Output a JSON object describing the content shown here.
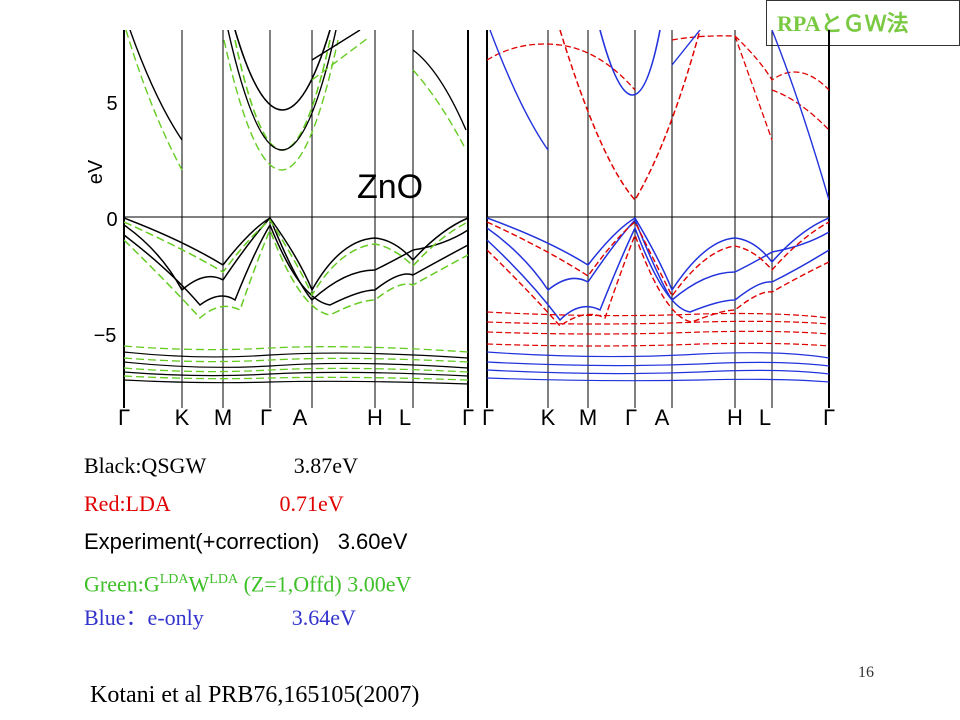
{
  "corner_tag": "RPAとＧＷ法",
  "figure": {
    "material_label": "ZnO",
    "y_axis_label": "eV",
    "y_ticks": [
      "5",
      "0",
      "−5"
    ],
    "k_labels": [
      "Γ",
      "K",
      "M",
      "Γ",
      "A",
      "H",
      "L",
      "Γ"
    ]
  },
  "legend": {
    "line1": "Black:QSGW                3.87eV",
    "line2": "Red:LDA                    0.71eV",
    "line3": "Experiment(+correction)   3.60eV",
    "line4_pre": "Green:G",
    "line4_sup1": "LDA",
    "line4_mid": "W",
    "line4_sup2": "LDA",
    "line4_post": " (Z=1,Offd) 3.00eV",
    "line5": "Blue：e-only                3.64eV"
  },
  "page_number": "16",
  "citation": "Kotani et al PRB76,165105(2007)",
  "colors": {
    "qsgw": "#000000",
    "gw_lda": "#66cc22",
    "lda": "#e00000",
    "e_only": "#2233dd"
  }
}
